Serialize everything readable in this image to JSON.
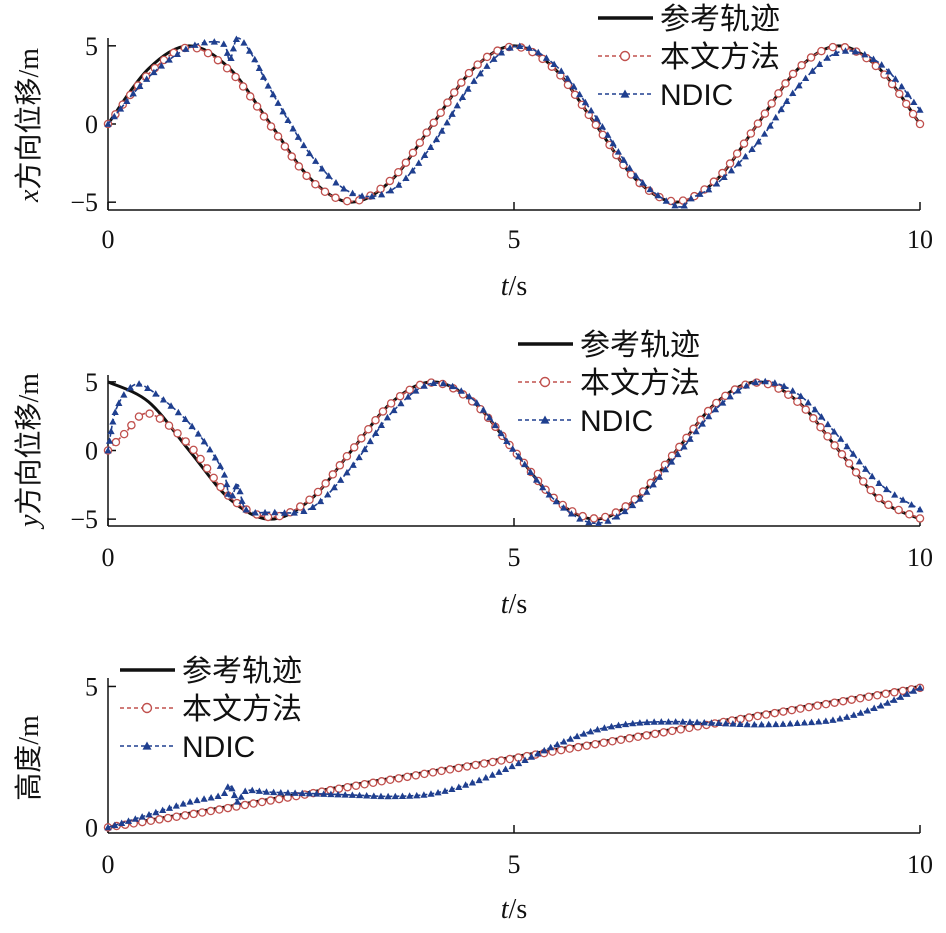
{
  "chart_data": [
    {
      "type": "line",
      "xlabel_var": "t",
      "xlabel_unit": "/s",
      "ylabel_var": "x",
      "ylabel_text": "方向位移/m",
      "xlim": [
        0,
        10
      ],
      "ylim": [
        -5.5,
        5.5
      ],
      "xticks": [
        "0",
        "5",
        "10"
      ],
      "yticks": [
        "−5",
        "0",
        "5"
      ],
      "legend_position": "top-right",
      "grid": false,
      "series": [
        {
          "name": "参考轨迹",
          "color": "#111111",
          "x": [
            0,
            0.5,
            1,
            1.5,
            2,
            2.5,
            3,
            3.5,
            4,
            4.5,
            5,
            5.5,
            6,
            6.5,
            7,
            7.5,
            8,
            8.5,
            9,
            9.5,
            10
          ],
          "y": [
            0,
            3.54,
            5.0,
            3.54,
            0,
            -3.54,
            -5.0,
            -3.54,
            0,
            3.54,
            5.0,
            3.54,
            0,
            -3.54,
            -5.0,
            -3.54,
            0,
            3.54,
            5.0,
            3.54,
            0
          ]
        },
        {
          "name": "本文方法",
          "color": "#c0504d",
          "x": [
            0,
            0.5,
            1,
            1.5,
            2,
            2.5,
            3,
            3.5,
            4,
            4.5,
            5,
            5.5,
            6,
            6.5,
            7,
            7.5,
            8,
            8.5,
            9,
            9.5,
            10
          ],
          "y": [
            0,
            3.2,
            4.9,
            3.4,
            -0.1,
            -3.6,
            -4.95,
            -3.5,
            0,
            3.55,
            4.95,
            3.5,
            0,
            -3.55,
            -4.95,
            -3.5,
            0,
            3.55,
            4.95,
            3.5,
            0
          ]
        },
        {
          "name": "NDIC",
          "color": "#1f3f8f",
          "x": [
            0,
            0.5,
            1,
            1.4,
            1.5,
            1.6,
            1.8,
            2,
            2.5,
            3,
            3.5,
            4,
            4.5,
            5,
            5.5,
            6,
            6.5,
            7,
            7.2,
            7.5,
            8,
            8.5,
            9,
            9.5,
            10
          ],
          "y": [
            0,
            3.0,
            4.9,
            5.2,
            4.1,
            5.5,
            4.2,
            2.2,
            -2.0,
            -4.4,
            -4.2,
            -1.3,
            2.7,
            4.95,
            3.8,
            0.5,
            -3.3,
            -5.25,
            -4.7,
            -3.8,
            -1.2,
            2.4,
            4.6,
            3.9,
            0.9
          ]
        }
      ]
    },
    {
      "type": "line",
      "xlabel_var": "t",
      "xlabel_unit": "/s",
      "ylabel_var": "y",
      "ylabel_text": "方向位移/m",
      "xlim": [
        0,
        10
      ],
      "ylim": [
        -5.5,
        5.5
      ],
      "xticks": [
        "0",
        "5",
        "10"
      ],
      "yticks": [
        "−5",
        "0",
        "5"
      ],
      "legend_position": "top-right",
      "grid": false,
      "series": [
        {
          "name": "参考轨迹",
          "color": "#111111",
          "x": [
            0,
            0.5,
            1,
            1.5,
            2,
            2.5,
            3,
            3.5,
            4,
            4.5,
            5,
            5.5,
            6,
            6.5,
            7,
            7.5,
            8,
            8.5,
            9,
            9.5,
            10
          ],
          "y": [
            5.0,
            3.54,
            0,
            -3.54,
            -5.0,
            -3.54,
            0,
            3.54,
            5.0,
            3.54,
            0,
            -3.54,
            -5.0,
            -3.54,
            0,
            3.54,
            5.0,
            3.54,
            0,
            -3.54,
            -5.0
          ]
        },
        {
          "name": "本文方法",
          "color": "#c0504d",
          "x": [
            0,
            0.2,
            0.5,
            1,
            1.5,
            2,
            2.5,
            3,
            3.5,
            4,
            4.5,
            5,
            5.5,
            6,
            6.5,
            7,
            7.5,
            8,
            8.5,
            9,
            9.5,
            10
          ],
          "y": [
            0,
            1.2,
            2.7,
            0.4,
            -3.4,
            -4.85,
            -3.5,
            0,
            3.5,
            4.95,
            3.5,
            0,
            -3.5,
            -4.95,
            -3.5,
            0,
            3.5,
            4.95,
            3.5,
            0,
            -3.5,
            -4.95
          ]
        },
        {
          "name": "NDIC",
          "color": "#1f3f8f",
          "x": [
            0,
            0.1,
            0.3,
            0.5,
            1,
            1.4,
            1.5,
            1.6,
            1.7,
            2,
            2.5,
            3,
            3.5,
            4,
            4.5,
            5,
            5.5,
            6,
            6.5,
            7,
            7.5,
            8,
            8.5,
            9,
            9.5,
            10
          ],
          "y": [
            0,
            3.0,
            4.7,
            4.5,
            2.0,
            -1.3,
            -3.5,
            -2.5,
            -4.3,
            -4.5,
            -4.2,
            -1.2,
            2.8,
            4.9,
            3.7,
            0,
            -3.6,
            -5.3,
            -3.8,
            -0.4,
            3.1,
            5.0,
            4.1,
            1.0,
            -2.4,
            -4.3
          ]
        }
      ]
    },
    {
      "type": "line",
      "xlabel_var": "t",
      "xlabel_unit": "/s",
      "ylabel_text": "高度/m",
      "xlim": [
        0,
        10
      ],
      "ylim": [
        -0.2,
        5.3
      ],
      "xticks": [
        "0",
        "5",
        "10"
      ],
      "yticks": [
        "0",
        "5"
      ],
      "legend_position": "top-left",
      "grid": false,
      "series": [
        {
          "name": "参考轨迹",
          "color": "#111111",
          "x": [
            0,
            10
          ],
          "y": [
            0,
            5
          ]
        },
        {
          "name": "本文方法",
          "color": "#c0504d",
          "x": [
            0,
            1,
            2,
            3,
            4,
            5,
            6,
            7,
            8,
            9,
            10
          ],
          "y": [
            0,
            0.45,
            0.95,
            1.45,
            1.95,
            2.45,
            2.95,
            3.45,
            3.95,
            4.45,
            4.95
          ]
        },
        {
          "name": "NDIC",
          "color": "#1f3f8f",
          "x": [
            0,
            0.5,
            1,
            1.4,
            1.5,
            1.6,
            1.7,
            2,
            2.5,
            3,
            3.5,
            4,
            4.5,
            5,
            5.5,
            6,
            6.5,
            7,
            7.5,
            8,
            8.5,
            9,
            9.5,
            10
          ],
          "y": [
            0,
            0.45,
            0.9,
            1.15,
            1.5,
            0.9,
            1.3,
            1.25,
            1.2,
            1.15,
            1.1,
            1.2,
            1.6,
            2.2,
            2.9,
            3.45,
            3.7,
            3.75,
            3.7,
            3.65,
            3.7,
            3.85,
            4.3,
            4.95
          ]
        }
      ]
    }
  ]
}
